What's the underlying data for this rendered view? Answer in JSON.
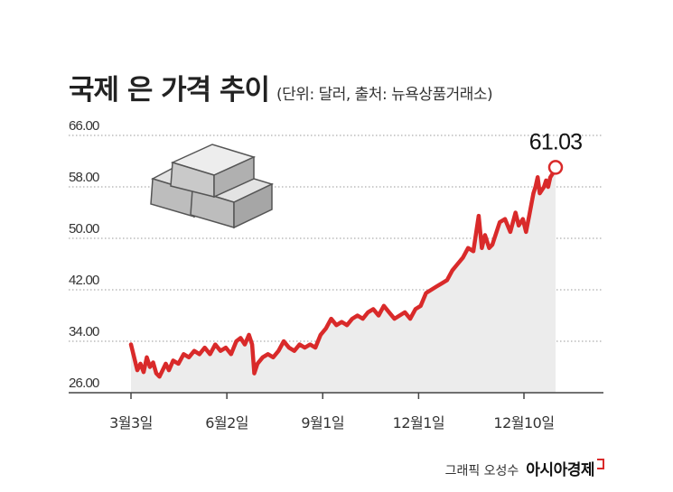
{
  "header": {
    "title": "국제 은 가격 추이",
    "subtitle": "(단위: 달러, 출처: 뉴욕상품거래소)"
  },
  "credit": {
    "text": "그래픽 오성수",
    "brand": "아시아경제"
  },
  "colors": {
    "line": "#d92a2a",
    "area": "#ececec",
    "grid": "#9a9a9a",
    "bars": "#c7c7c7"
  },
  "icons": [
    "silver-bars-icon",
    "brand-mark-icon"
  ],
  "chart_data": {
    "type": "line",
    "title": "국제 은 가격 추이",
    "subtitle": "(단위: 달러, 출처: 뉴욕상품거래소)",
    "ylim": [
      26,
      66
    ],
    "yticks": [
      "66.00",
      "58.00",
      "50.00",
      "42.00",
      "34.00",
      "26.00"
    ],
    "ytick_values": [
      66,
      58,
      50,
      42,
      34,
      26
    ],
    "xtick_labels": [
      "3월3일",
      "6월2일",
      "9월1일",
      "12월1일",
      "12월10일"
    ],
    "xtick_positions": [
      0,
      91,
      182,
      273,
      373
    ],
    "grid": true,
    "last_value_label": "61.03",
    "series": [
      {
        "x": [
          0,
          3,
          6,
          9,
          12,
          15,
          18,
          21,
          24,
          27,
          30,
          33,
          36,
          40,
          45,
          50,
          55,
          60,
          65,
          70,
          75,
          80,
          85,
          90,
          95,
          100,
          104,
          108,
          112,
          115,
          117,
          120,
          125,
          130,
          135,
          140,
          145,
          150,
          155,
          160,
          165,
          170,
          175,
          180,
          185,
          190,
          195,
          200,
          205,
          210,
          215,
          220,
          225,
          230,
          235,
          240,
          245,
          250,
          255,
          260,
          265,
          270,
          275,
          280,
          285,
          290,
          295,
          300,
          305,
          310,
          315,
          320,
          325,
          330,
          333,
          336,
          340,
          343,
          346,
          350,
          355,
          360,
          365,
          368,
          372,
          375,
          378,
          382,
          384,
          386,
          388,
          390,
          392,
          394,
          396,
          398,
          400,
          403
        ],
        "values": [
          33.5,
          31.5,
          29.5,
          30.5,
          29.2,
          31.5,
          30.0,
          30.7,
          29.0,
          28.5,
          29.5,
          30.5,
          29.5,
          31.0,
          30.5,
          32.0,
          31.5,
          32.5,
          32.0,
          33.0,
          32.0,
          33.5,
          32.5,
          33.0,
          32.0,
          34.0,
          34.5,
          33.5,
          35.0,
          33.5,
          29.0,
          30.5,
          31.5,
          32.0,
          31.5,
          32.5,
          34.0,
          33.0,
          32.5,
          33.5,
          33.0,
          33.5,
          33.0,
          35.0,
          36.0,
          37.5,
          36.5,
          37.0,
          36.5,
          37.5,
          38.0,
          37.5,
          38.5,
          39.0,
          38.0,
          39.5,
          38.5,
          37.5,
          38.0,
          38.5,
          37.5,
          39.0,
          39.5,
          41.5,
          42.0,
          42.5,
          43.0,
          43.5,
          45.0,
          46.0,
          47.0,
          48.5,
          48.0,
          53.5,
          48.5,
          50.5,
          48.5,
          49.0,
          50.5,
          52.5,
          53.0,
          51.0,
          54.0,
          52.0,
          53.0,
          51.0,
          53.5,
          57.0,
          58.0,
          59.5,
          57.0,
          57.5,
          58.0,
          59.0,
          58.0,
          59.5,
          60.0,
          61.03
        ]
      }
    ]
  }
}
